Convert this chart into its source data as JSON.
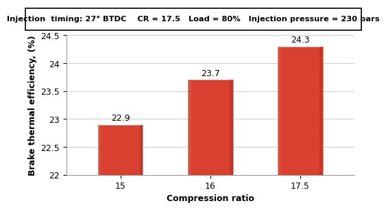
{
  "categories": [
    "15",
    "16",
    "17.5"
  ],
  "values": [
    22.9,
    23.7,
    24.3
  ],
  "bar_color_main": "#d94030",
  "bar_color_light": "#e86050",
  "bar_color_dark": "#b03020",
  "bar_edge_color": "#aaaaaa",
  "title": "Injection  timing: 27° BTDC    CR = 17.5   Load = 80%   Injection pressure = 230 bars",
  "xlabel": "Compression ratio",
  "ylabel": "Brake thermal efficiency, (%)",
  "ylim": [
    22,
    24.5
  ],
  "yticks": [
    22,
    22.5,
    23,
    23.5,
    24,
    24.5
  ],
  "title_fontsize": 8.2,
  "axis_label_fontsize": 9,
  "tick_fontsize": 9,
  "value_label_fontsize": 9,
  "background_color": "#ffffff",
  "grid_color": "#cccccc"
}
